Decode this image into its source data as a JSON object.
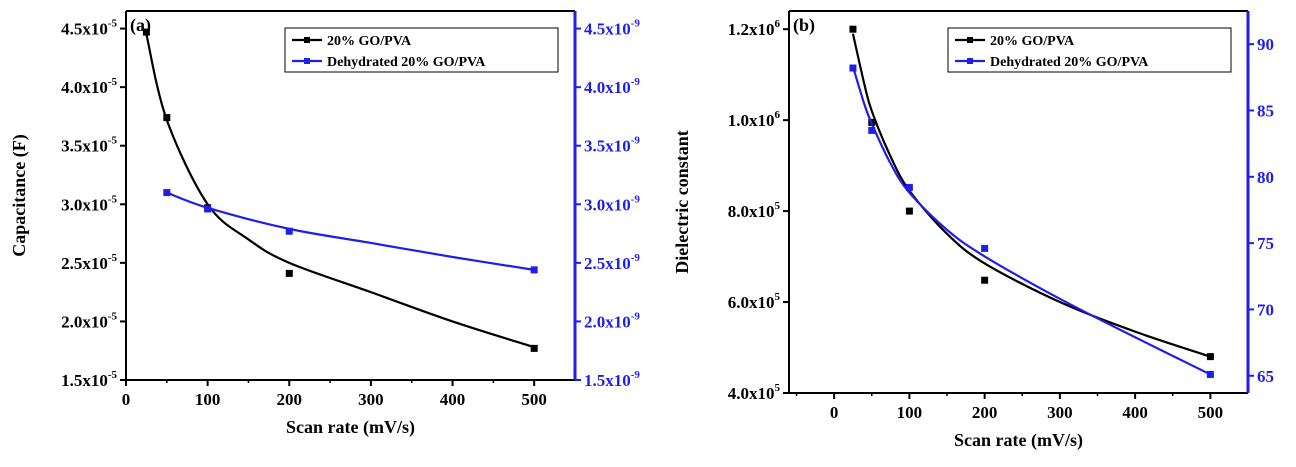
{
  "colors": {
    "series_black": "#000000",
    "series_blue": "#1f1fe6",
    "axis": "#000000",
    "right_axis": "#1f1fe6"
  },
  "chart_data": [
    {
      "panel_label": "(a)",
      "type": "line",
      "xlabel": "Scan rate (mV/s)",
      "ylabel": "Capacitance (F)",
      "x_ticks": [
        "0",
        "100",
        "200",
        "300",
        "400",
        "500"
      ],
      "xlim": [
        0,
        550
      ],
      "left_ylim": [
        1.5e-05,
        4.65e-05
      ],
      "left_ticks": [
        {
          "v": 1.5e-05,
          "m": "1.5x10",
          "e": "-5"
        },
        {
          "v": 2e-05,
          "m": "2.0x10",
          "e": "-5"
        },
        {
          "v": 2.5e-05,
          "m": "2.5x10",
          "e": "-5"
        },
        {
          "v": 3e-05,
          "m": "3.0x10",
          "e": "-5"
        },
        {
          "v": 3.5e-05,
          "m": "3.5x10",
          "e": "-5"
        },
        {
          "v": 4e-05,
          "m": "4.0x10",
          "e": "-5"
        },
        {
          "v": 4.5e-05,
          "m": "4.5x10",
          "e": "-5"
        }
      ],
      "right_ylim": [
        1.5e-09,
        4.65e-09
      ],
      "right_ticks": [
        {
          "v": 1.5e-09,
          "m": "1.5x10",
          "e": "-9"
        },
        {
          "v": 2e-09,
          "m": "2.0x10",
          "e": "-9"
        },
        {
          "v": 2.5e-09,
          "m": "2.5x10",
          "e": "-9"
        },
        {
          "v": 3e-09,
          "m": "3.0x10",
          "e": "-9"
        },
        {
          "v": 3.5e-09,
          "m": "3.5x10",
          "e": "-9"
        },
        {
          "v": 4e-09,
          "m": "4.0x10",
          "e": "-9"
        },
        {
          "v": 4.5e-09,
          "m": "4.5x10",
          "e": "-9"
        }
      ],
      "legend_placement": "top-right",
      "series": [
        {
          "name": "20% GO/PVA",
          "axis": "left",
          "color": "#000000",
          "points": [
            [
              25,
              4.47e-05
            ],
            [
              50,
              3.74e-05
            ],
            [
              100,
              2.97e-05
            ],
            [
              200,
              2.41e-05
            ],
            [
              500,
              1.77e-05
            ]
          ],
          "fit": [
            [
              25,
              4.45e-05
            ],
            [
              50,
              3.72e-05
            ],
            [
              100,
              3e-05
            ],
            [
              150,
              2.7e-05
            ],
            [
              200,
              2.5e-05
            ],
            [
              300,
              2.25e-05
            ],
            [
              400,
              2e-05
            ],
            [
              500,
              1.78e-05
            ]
          ]
        },
        {
          "name": "Dehydrated 20% GO/PVA",
          "axis": "right",
          "color": "#1f1fe6",
          "points": [
            [
              50,
              3.1e-09
            ],
            [
              100,
              2.96e-09
            ],
            [
              200,
              2.77e-09
            ],
            [
              500,
              2.44e-09
            ]
          ],
          "fit": [
            [
              50,
              3.1e-09
            ],
            [
              100,
              2.97e-09
            ],
            [
              200,
              2.79e-09
            ],
            [
              300,
              2.67e-09
            ],
            [
              400,
              2.55e-09
            ],
            [
              500,
              2.44e-09
            ]
          ]
        }
      ]
    },
    {
      "panel_label": "(b)",
      "type": "line",
      "xlabel": "Scan rate (mV/s)",
      "ylabel": "Dielectric constant",
      "x_ticks": [
        "0",
        "100",
        "200",
        "300",
        "400",
        "500"
      ],
      "xlim": [
        -60,
        550
      ],
      "left_ylim": [
        400000.0,
        1240000.0
      ],
      "left_ticks": [
        {
          "v": 400000.0,
          "m": "4.0x10",
          "e": "5"
        },
        {
          "v": 600000.0,
          "m": "6.0x10",
          "e": "5"
        },
        {
          "v": 800000.0,
          "m": "8.0x10",
          "e": "5"
        },
        {
          "v": 1000000.0,
          "m": "1.0x10",
          "e": "6"
        },
        {
          "v": 1200000.0,
          "m": "1.2x10",
          "e": "6"
        }
      ],
      "right_ylim": [
        63.7,
        92.5
      ],
      "right_ticks": [
        {
          "v": 65,
          "m": "65",
          "e": ""
        },
        {
          "v": 70,
          "m": "70",
          "e": ""
        },
        {
          "v": 75,
          "m": "75",
          "e": ""
        },
        {
          "v": 80,
          "m": "80",
          "e": ""
        },
        {
          "v": 85,
          "m": "85",
          "e": ""
        },
        {
          "v": 90,
          "m": "90",
          "e": ""
        }
      ],
      "legend_placement": "top-right",
      "series": [
        {
          "name": "20% GO/PVA",
          "axis": "left",
          "color": "#000000",
          "points": [
            [
              25,
              1200000.0
            ],
            [
              50,
              995000.0
            ],
            [
              100,
              800000.0
            ],
            [
              200,
              648000.0
            ],
            [
              500,
              480000.0
            ]
          ],
          "fit": [
            [
              25,
              1190000.0
            ],
            [
              40,
              1080000.0
            ],
            [
              50,
              1020000.0
            ],
            [
              75,
              920000.0
            ],
            [
              100,
              845000.0
            ],
            [
              150,
              750000.0
            ],
            [
              200,
              685000.0
            ],
            [
              300,
              600000.0
            ],
            [
              400,
              535000.0
            ],
            [
              500,
              480000.0
            ]
          ]
        },
        {
          "name": "Dehydrated 20% GO/PVA",
          "axis": "right",
          "color": "#1f1fe6",
          "points": [
            [
              25,
              88.2
            ],
            [
              50,
              83.5
            ],
            [
              100,
              79.2
            ],
            [
              200,
              74.6
            ],
            [
              500,
              65.1
            ]
          ],
          "fit": [
            [
              25,
              88.3
            ],
            [
              40,
              85.5
            ],
            [
              50,
              84.0
            ],
            [
              75,
              81.0
            ],
            [
              100,
              78.8
            ],
            [
              150,
              76.0
            ],
            [
              200,
              74.0
            ],
            [
              300,
              70.8
            ],
            [
              400,
              67.9
            ],
            [
              500,
              65.1
            ]
          ]
        }
      ]
    }
  ]
}
